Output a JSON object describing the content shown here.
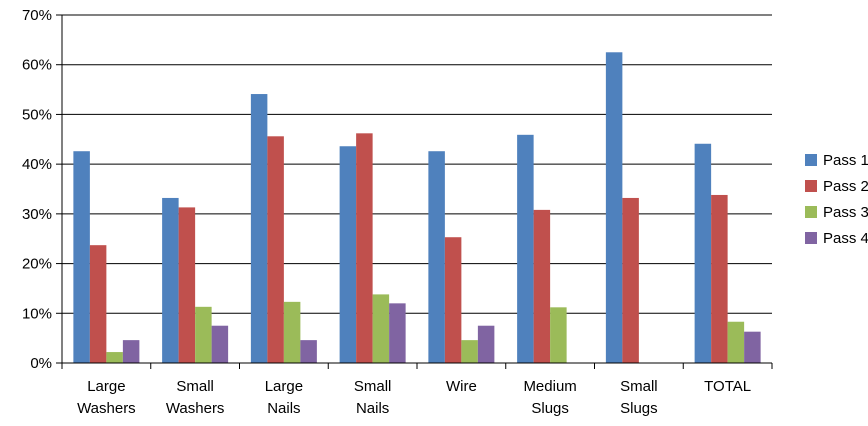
{
  "chart_data": {
    "type": "bar",
    "title": "",
    "xlabel": "",
    "ylabel": "",
    "ylim": [
      0,
      70
    ],
    "y_tick_format": "percent",
    "y_ticks": [
      "0%",
      "10%",
      "20%",
      "30%",
      "40%",
      "50%",
      "60%",
      "70%"
    ],
    "grid": true,
    "legend_position": "right",
    "categories": [
      [
        "Large",
        "Washers"
      ],
      [
        "Small",
        "Washers"
      ],
      [
        "Large",
        "Nails"
      ],
      [
        "Small",
        "Nails"
      ],
      [
        "Wire"
      ],
      [
        "Medium",
        "Slugs"
      ],
      [
        "Small",
        "Slugs"
      ],
      [
        "TOTAL"
      ]
    ],
    "series": [
      {
        "name": "Pass 1",
        "color": "#4f81bd",
        "values": [
          42.6,
          33.2,
          54.1,
          43.6,
          42.6,
          45.9,
          62.5,
          44.1
        ]
      },
      {
        "name": "Pass 2",
        "color": "#c0504d",
        "values": [
          23.7,
          31.3,
          45.6,
          46.2,
          25.3,
          30.8,
          33.2,
          33.8
        ]
      },
      {
        "name": "Pass 3",
        "color": "#9bbb59",
        "values": [
          2.2,
          11.3,
          12.3,
          13.8,
          4.6,
          11.2,
          0,
          8.3
        ]
      },
      {
        "name": "Pass 4",
        "color": "#8064a2",
        "values": [
          4.6,
          7.5,
          4.6,
          12.0,
          7.5,
          0,
          0,
          6.3
        ]
      }
    ]
  }
}
